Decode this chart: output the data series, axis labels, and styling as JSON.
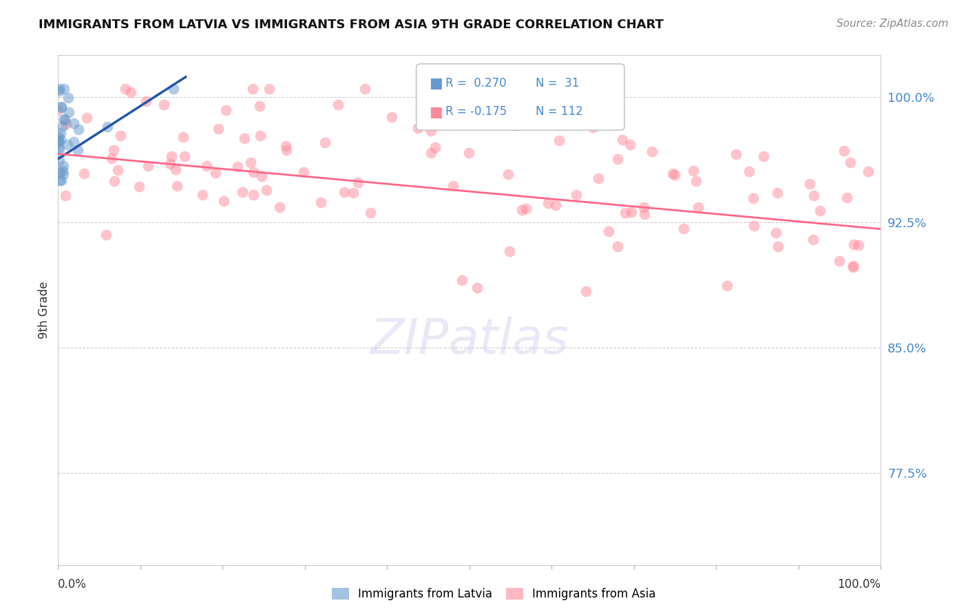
{
  "title": "IMMIGRANTS FROM LATVIA VS IMMIGRANTS FROM ASIA 9TH GRADE CORRELATION CHART",
  "source": "Source: ZipAtlas.com",
  "ylabel": "9th Grade",
  "ytick_labels": [
    "100.0%",
    "92.5%",
    "85.0%",
    "77.5%"
  ],
  "ytick_values": [
    1.0,
    0.925,
    0.85,
    0.775
  ],
  "xmin": 0.0,
  "xmax": 1.0,
  "ymin": 0.72,
  "ymax": 1.025,
  "blue_color": "#6699CC",
  "pink_color": "#FF8899",
  "blue_line_color": "#2255AA",
  "pink_line_color": "#FF6688",
  "blue_r": 0.27,
  "blue_n": 31,
  "pink_r": -0.175,
  "pink_n": 112,
  "blue_line_x": [
    0.0,
    0.155
  ],
  "blue_line_y": [
    0.963,
    1.012
  ],
  "pink_line_x": [
    0.0,
    1.0
  ],
  "pink_line_y": [
    0.966,
    0.921
  ],
  "watermark_text": "ZIPatlas",
  "legend_label_blue": "Immigrants from Latvia",
  "legend_label_pink": "Immigrants from Asia"
}
